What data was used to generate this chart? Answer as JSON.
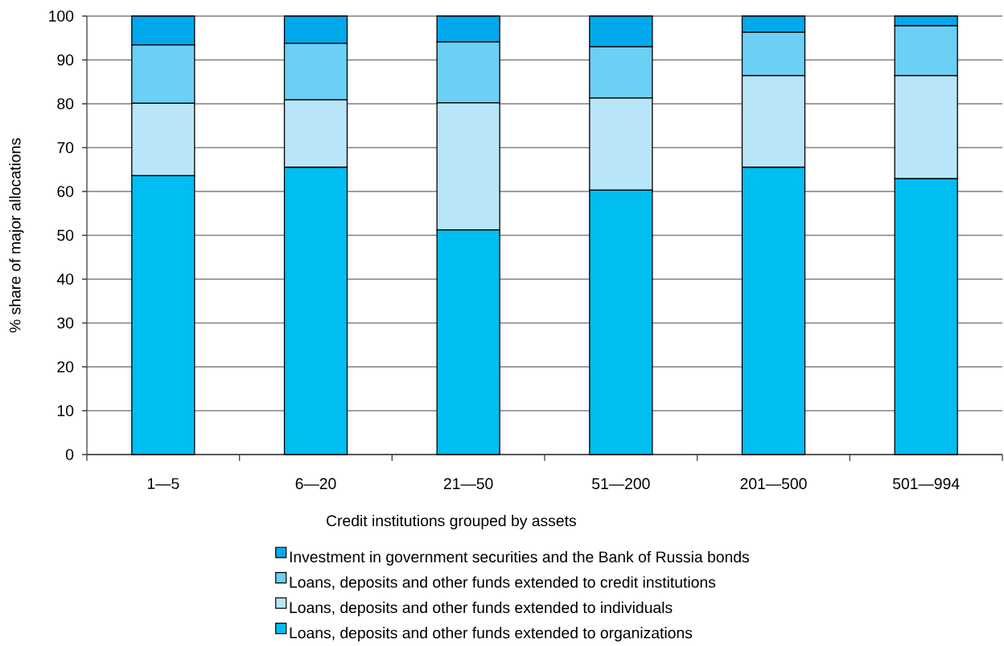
{
  "chart_data": {
    "type": "bar",
    "stacked": true,
    "xlabel": "Credit institutions grouped by assets",
    "ylabel": "% share of major allocations",
    "categories": [
      "1—5",
      "6—20",
      "21—50",
      "51—200",
      "201—500",
      "501—994"
    ],
    "series": [
      {
        "name": "Loans, deposits and other funds extended to organizations",
        "color": "#00bef2",
        "values": [
          63.6,
          65.5,
          51.2,
          60.3,
          65.5,
          62.9
        ]
      },
      {
        "name": "Loans, deposits and other funds extended to individuals",
        "color": "#b9e5f9",
        "values": [
          16.5,
          15.4,
          29.0,
          21.0,
          20.9,
          23.5
        ]
      },
      {
        "name": "Loans, deposits and other funds extended to credit institutions",
        "color": "#6ccff6",
        "values": [
          13.3,
          12.9,
          13.9,
          11.7,
          9.9,
          11.4
        ]
      },
      {
        "name": "Investment in government securities and the Bank of Russia bonds",
        "color": "#00a9ec",
        "values": [
          6.6,
          6.2,
          5.9,
          7.0,
          3.7,
          2.2
        ]
      }
    ],
    "ylim": [
      0,
      100
    ],
    "yticks": [
      0,
      10,
      20,
      30,
      40,
      50,
      60,
      70,
      80,
      90,
      100
    ],
    "grid": "y",
    "legend": "bottom"
  }
}
